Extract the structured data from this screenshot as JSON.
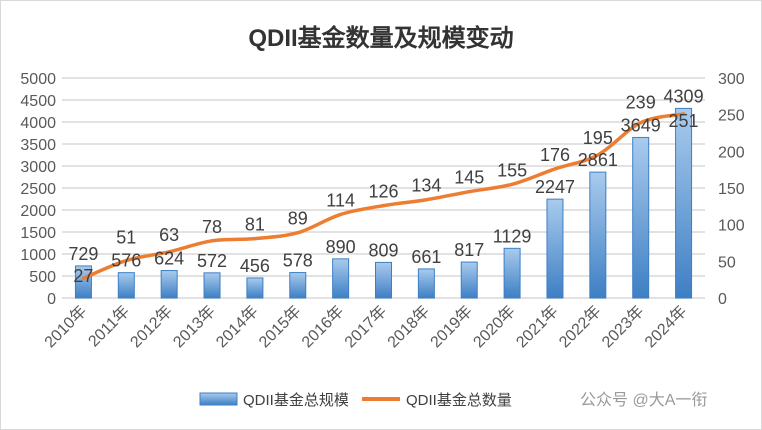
{
  "chart_data": {
    "type": "bar+line",
    "title": "QDII基金数量及规模变动",
    "categories": [
      "2010年",
      "2011年",
      "2012年",
      "2013年",
      "2014年",
      "2015年",
      "2016年",
      "2017年",
      "2018年",
      "2019年",
      "2020年",
      "2021年",
      "2022年",
      "2023年",
      "2024年"
    ],
    "series": [
      {
        "name": "QDII基金总规模",
        "type": "bar",
        "axis": "left",
        "color": "#5b9bd5",
        "values": [
          729,
          576,
          624,
          572,
          456,
          578,
          890,
          809,
          661,
          817,
          1129,
          2247,
          2861,
          3649,
          4309
        ]
      },
      {
        "name": "QDII基金总数量",
        "type": "line",
        "axis": "right",
        "color": "#ed7d31",
        "values": [
          27,
          51,
          63,
          78,
          81,
          89,
          114,
          126,
          134,
          145,
          155,
          176,
          195,
          239,
          251
        ]
      }
    ],
    "y_left": {
      "range": [
        0,
        5000
      ],
      "ticks": [
        "0",
        "500",
        "1000",
        "1500",
        "2000",
        "2500",
        "3000",
        "3500",
        "4000",
        "4500",
        "5000"
      ]
    },
    "y_right": {
      "range": [
        0,
        300
      ],
      "ticks": [
        "0",
        "50",
        "100",
        "150",
        "200",
        "250",
        "300"
      ]
    },
    "grid": true,
    "legend": "bottom"
  },
  "watermark": "公众号 @大A一衔"
}
